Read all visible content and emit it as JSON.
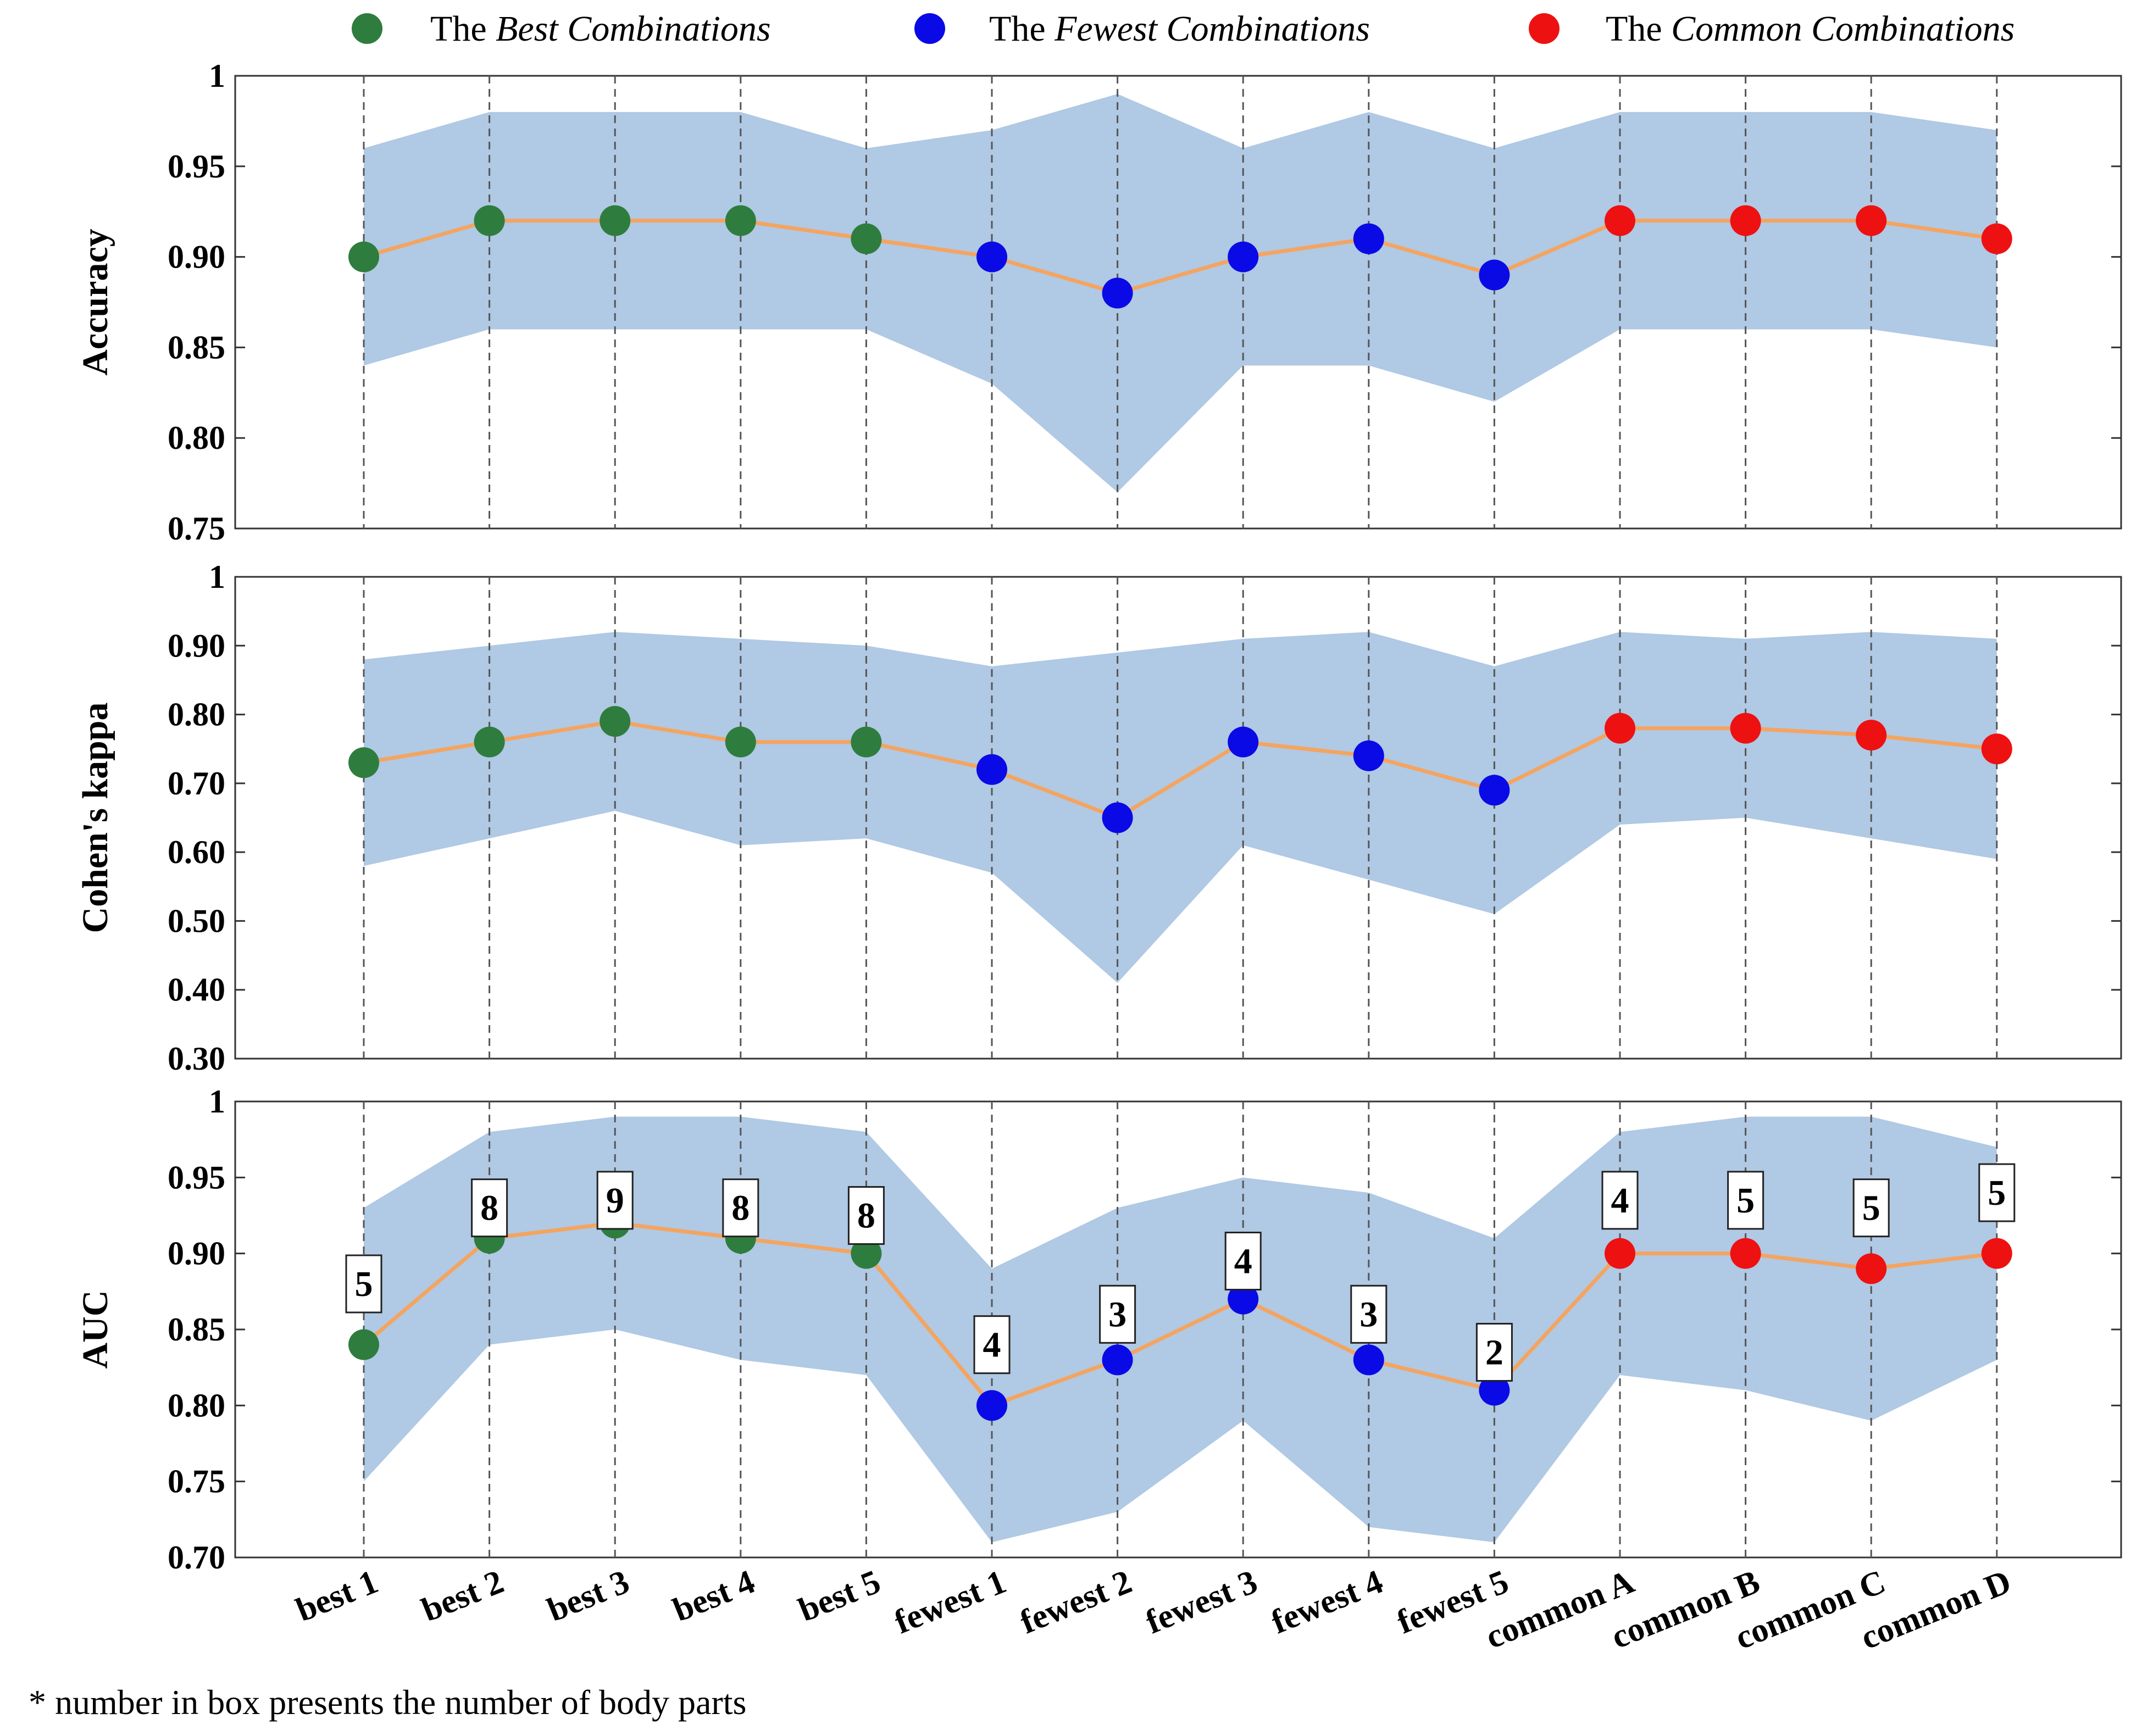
{
  "legend": {
    "best": {
      "prefix": "The ",
      "name": "Best Combinations",
      "color": "#2e7d3e"
    },
    "fewest": {
      "prefix": "The ",
      "name": "Fewest Combinations",
      "color": "#0a0ae6"
    },
    "common": {
      "prefix": "The ",
      "name": "Common Combinations",
      "color": "#ee1111"
    }
  },
  "footnote": "* number in box presents the number of body parts",
  "chart_data": [
    {
      "type": "line",
      "ylabel": "Accuracy",
      "ylim": [
        0.75,
        1.0
      ],
      "yticks": [
        0.75,
        0.8,
        0.85,
        0.9,
        0.95,
        1.0
      ],
      "ytick_labels": [
        "0.75",
        "0.80",
        "0.85",
        "0.90",
        "0.95",
        "1"
      ],
      "categories": [
        "best 1",
        "best 2",
        "best 3",
        "best 4",
        "best 5",
        "fewest 1",
        "fewest 2",
        "fewest 3",
        "fewest 4",
        "fewest 5",
        "common A",
        "common B",
        "common C",
        "common D"
      ],
      "groups": [
        "best",
        "best",
        "best",
        "best",
        "best",
        "fewest",
        "fewest",
        "fewest",
        "fewest",
        "fewest",
        "common",
        "common",
        "common",
        "common"
      ],
      "values": [
        0.9,
        0.92,
        0.92,
        0.92,
        0.91,
        0.9,
        0.88,
        0.9,
        0.91,
        0.89,
        0.92,
        0.92,
        0.92,
        0.91
      ],
      "upper": [
        0.96,
        0.98,
        0.98,
        0.98,
        0.96,
        0.97,
        0.99,
        0.96,
        0.98,
        0.96,
        0.98,
        0.98,
        0.98,
        0.97
      ],
      "lower": [
        0.84,
        0.86,
        0.86,
        0.86,
        0.86,
        0.83,
        0.77,
        0.84,
        0.84,
        0.82,
        0.86,
        0.86,
        0.86,
        0.85
      ],
      "line_color": "#f4a460",
      "band_color": "#b0c9e4",
      "grid": "vertical dashed"
    },
    {
      "type": "line",
      "ylabel": "Cohen's kappa",
      "ylim": [
        0.3,
        1.0
      ],
      "yticks": [
        0.3,
        0.4,
        0.5,
        0.6,
        0.7,
        0.8,
        0.9,
        1.0
      ],
      "ytick_labels": [
        "0.30",
        "0.40",
        "0.50",
        "0.60",
        "0.70",
        "0.80",
        "0.90",
        "1"
      ],
      "categories": [
        "best 1",
        "best 2",
        "best 3",
        "best 4",
        "best 5",
        "fewest 1",
        "fewest 2",
        "fewest 3",
        "fewest 4",
        "fewest 5",
        "common A",
        "common B",
        "common C",
        "common D"
      ],
      "groups": [
        "best",
        "best",
        "best",
        "best",
        "best",
        "fewest",
        "fewest",
        "fewest",
        "fewest",
        "fewest",
        "common",
        "common",
        "common",
        "common"
      ],
      "values": [
        0.73,
        0.76,
        0.79,
        0.76,
        0.76,
        0.72,
        0.65,
        0.76,
        0.74,
        0.69,
        0.78,
        0.78,
        0.77,
        0.75
      ],
      "upper": [
        0.88,
        0.9,
        0.92,
        0.91,
        0.9,
        0.87,
        0.89,
        0.91,
        0.92,
        0.87,
        0.92,
        0.91,
        0.92,
        0.91
      ],
      "lower": [
        0.58,
        0.62,
        0.66,
        0.61,
        0.62,
        0.57,
        0.41,
        0.61,
        0.56,
        0.51,
        0.64,
        0.65,
        0.62,
        0.59
      ],
      "line_color": "#f4a460",
      "band_color": "#b0c9e4",
      "grid": "vertical dashed"
    },
    {
      "type": "line",
      "ylabel": "AUC",
      "ylim": [
        0.7,
        1.0
      ],
      "yticks": [
        0.7,
        0.75,
        0.8,
        0.85,
        0.9,
        0.95,
        1.0
      ],
      "ytick_labels": [
        "0.70",
        "0.75",
        "0.80",
        "0.85",
        "0.90",
        "0.95",
        "1"
      ],
      "categories": [
        "best 1",
        "best 2",
        "best 3",
        "best 4",
        "best 5",
        "fewest 1",
        "fewest 2",
        "fewest 3",
        "fewest 4",
        "fewest 5",
        "common A",
        "common B",
        "common C",
        "common D"
      ],
      "groups": [
        "best",
        "best",
        "best",
        "best",
        "best",
        "fewest",
        "fewest",
        "fewest",
        "fewest",
        "fewest",
        "common",
        "common",
        "common",
        "common"
      ],
      "values": [
        0.84,
        0.91,
        0.92,
        0.91,
        0.9,
        0.8,
        0.83,
        0.87,
        0.83,
        0.81,
        0.9,
        0.9,
        0.89,
        0.9
      ],
      "upper": [
        0.93,
        0.98,
        0.99,
        0.99,
        0.98,
        0.89,
        0.93,
        0.95,
        0.94,
        0.91,
        0.98,
        0.99,
        0.99,
        0.97
      ],
      "lower": [
        0.75,
        0.84,
        0.85,
        0.83,
        0.82,
        0.71,
        0.73,
        0.79,
        0.72,
        0.71,
        0.82,
        0.81,
        0.79,
        0.83
      ],
      "annotations": [
        "5",
        "8",
        "9",
        "8",
        "8",
        "4",
        "3",
        "4",
        "3",
        "2",
        "4",
        "5",
        "5",
        "5"
      ],
      "annotation_values": [
        0.88,
        0.93,
        0.935,
        0.93,
        0.925,
        0.84,
        0.86,
        0.895,
        0.86,
        0.835,
        0.935,
        0.935,
        0.93,
        0.94
      ],
      "line_color": "#f4a460",
      "band_color": "#b0c9e4",
      "grid": "vertical dashed"
    }
  ]
}
